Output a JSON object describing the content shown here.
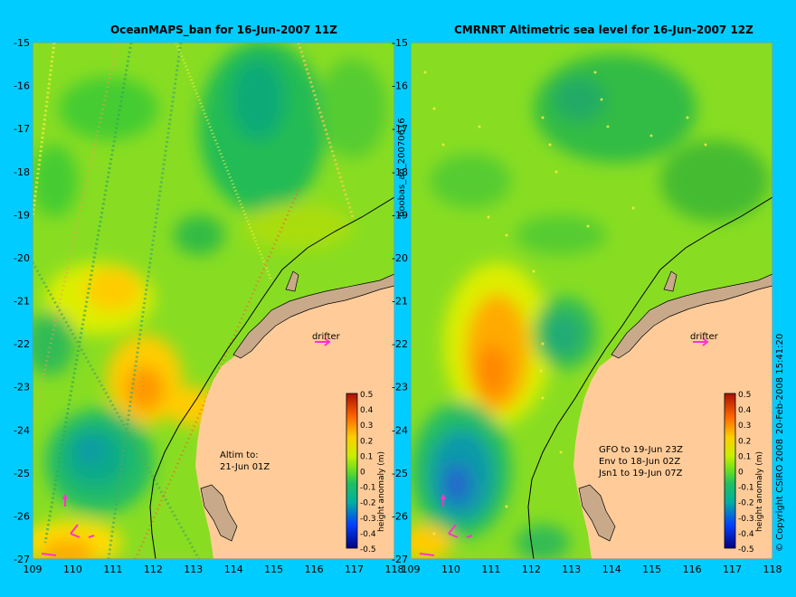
{
  "left_panel": {
    "title": "OceanMAPS_ban for 16-Jun-2007 11Z",
    "drifter_label": "drifter",
    "altim_label": "Altim to:",
    "altim_date": "21-Jun 01Z"
  },
  "right_panel": {
    "title": "CMRNRT Altimetric sea level  for 16-Jun-2007 12Z",
    "drifter_label": "drifter",
    "satellite_notes": [
      "GFO to 19-Jun 23Z",
      "Env to 18-Jun 02Z",
      "Jsn1 to 19-Jun 07Z"
    ]
  },
  "side_text": {
    "run_id": "boobas_an_20070616",
    "copyright": "© Copyright CSIRO 2008",
    "timestamp": "20-Feb-2008 15:41:20"
  },
  "axes": {
    "lat_ticks": [
      "-15",
      "-16",
      "-17",
      "-18",
      "-19",
      "-20",
      "-21",
      "-22",
      "-23",
      "-24",
      "-25",
      "-26",
      "-27"
    ],
    "lon_ticks": [
      "109",
      "110",
      "111",
      "112",
      "113",
      "114",
      "115",
      "116",
      "117",
      "118"
    ]
  },
  "colorbar": {
    "label": "height anomaly (m)",
    "ticks": [
      "0.5",
      "0.4",
      "0.3",
      "0.2",
      "0.1",
      "0",
      "-0.1",
      "-0.2",
      "-0.3",
      "-0.4",
      "-0.5"
    ],
    "range": [
      -0.5,
      0.5
    ]
  },
  "colors": {
    "background": "#00ccff",
    "land": "#ffcc99",
    "shelf": "#c8aa8a",
    "drifter_arrow": "#ff33cc"
  }
}
